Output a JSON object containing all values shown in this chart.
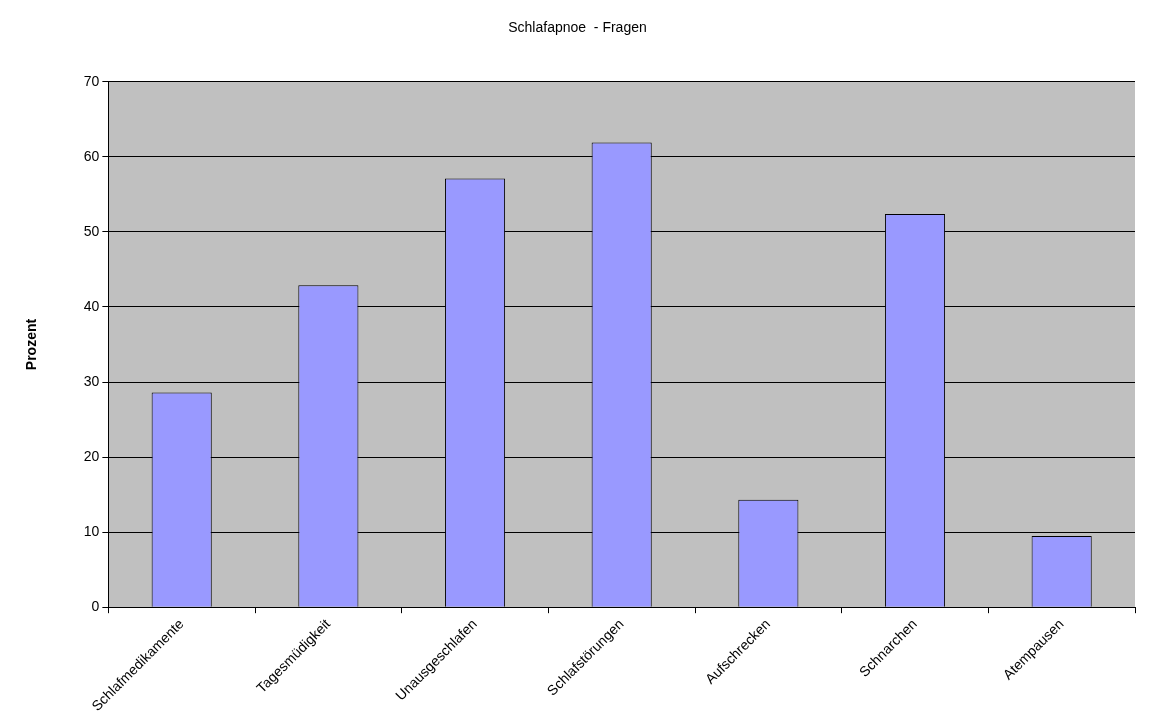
{
  "chart_data": {
    "type": "bar",
    "title": "Schlafapnoe  - Fragen",
    "ylabel": "Prozent",
    "categories": [
      "Schlafmedikamente",
      "Tagesmüdigkeit",
      "Unausgeschlafen",
      "Schlafstörungen",
      "Aufschrecken",
      "Schnarchen",
      "Atempausen"
    ],
    "values": [
      28.6,
      42.9,
      57.1,
      61.9,
      14.3,
      52.4,
      9.5
    ],
    "color": "#9999ff",
    "ylim": [
      0,
      70
    ],
    "yticks": [
      0,
      10,
      20,
      30,
      40,
      50,
      60,
      70
    ],
    "grid": "y",
    "legend": false
  }
}
